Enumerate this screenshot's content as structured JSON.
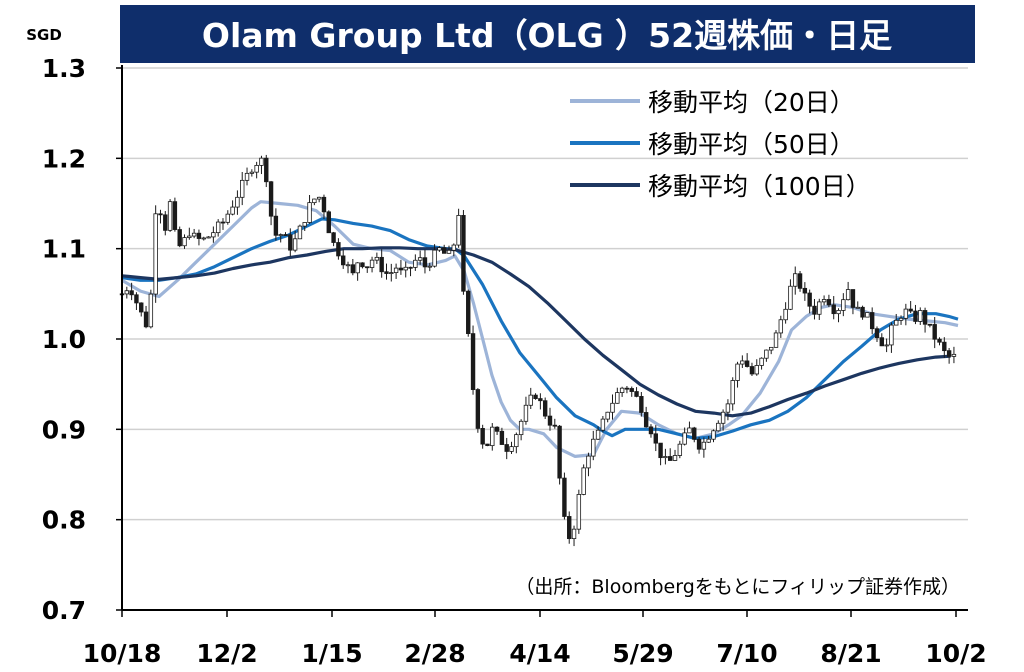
{
  "chart_data": {
    "type": "line",
    "title": "Olam Group Ltd（OLG ）52週株価・日足",
    "ylabel": "SGD",
    "ylim": [
      0.7,
      1.3
    ],
    "yticks": [
      "1.3",
      "1.2",
      "1.1",
      "1.0",
      "0.9",
      "0.8",
      "0.7"
    ],
    "ytick_values": [
      1.3,
      1.2,
      1.1,
      1.0,
      0.9,
      0.8,
      0.7
    ],
    "xticks": [
      "10/18",
      "12/2",
      "1/15",
      "2/28",
      "4/14",
      "5/29",
      "7/10",
      "8/21",
      "10/2"
    ],
    "grid": true,
    "legend_position": "top-right",
    "source": "（出所：Bloombergをもとにフィリップ証券作成）",
    "colors": {
      "title_bg": "#0f2e6b",
      "title_text": "#ffffff",
      "candle": "#1a1a1a",
      "ma20": "#9db4d8",
      "ma50": "#1a74c0",
      "ma100": "#1d3660",
      "grid": "#d0d0d0"
    },
    "series": [
      {
        "name": "移動平均（20日）",
        "key": "ma20",
        "points": [
          [
            0,
            1.065
          ],
          [
            10,
            1.053
          ],
          [
            20,
            1.047
          ],
          [
            30,
            1.065
          ],
          [
            40,
            1.085
          ],
          [
            50,
            1.105
          ],
          [
            60,
            1.125
          ],
          [
            70,
            1.145
          ],
          [
            75,
            1.152
          ],
          [
            85,
            1.15
          ],
          [
            95,
            1.148
          ],
          [
            105,
            1.142
          ],
          [
            115,
            1.125
          ],
          [
            125,
            1.105
          ],
          [
            135,
            1.1
          ],
          [
            145,
            1.098
          ],
          [
            155,
            1.085
          ],
          [
            165,
            1.082
          ],
          [
            175,
            1.087
          ],
          [
            180,
            1.092
          ],
          [
            185,
            1.075
          ],
          [
            190,
            1.04
          ],
          [
            195,
            1.0
          ],
          [
            200,
            0.96
          ],
          [
            205,
            0.93
          ],
          [
            210,
            0.91
          ],
          [
            215,
            0.9
          ],
          [
            220,
            0.9
          ],
          [
            228,
            0.895
          ],
          [
            235,
            0.88
          ],
          [
            245,
            0.87
          ],
          [
            255,
            0.872
          ],
          [
            262,
            0.9
          ],
          [
            270,
            0.92
          ],
          [
            280,
            0.918
          ],
          [
            290,
            0.905
          ],
          [
            300,
            0.895
          ],
          [
            310,
            0.89
          ],
          [
            320,
            0.895
          ],
          [
            328,
            0.905
          ],
          [
            335,
            0.915
          ],
          [
            345,
            0.94
          ],
          [
            355,
            0.975
          ],
          [
            362,
            1.01
          ],
          [
            370,
            1.025
          ],
          [
            378,
            1.035
          ],
          [
            385,
            1.038
          ],
          [
            395,
            1.035
          ],
          [
            405,
            1.028
          ],
          [
            415,
            1.025
          ],
          [
            425,
            1.022
          ],
          [
            435,
            1.02
          ],
          [
            445,
            1.018
          ],
          [
            452,
            1.015
          ]
        ]
      },
      {
        "name": "移動平均（50日）",
        "key": "ma50",
        "points": [
          [
            0,
            1.068
          ],
          [
            10,
            1.065
          ],
          [
            20,
            1.065
          ],
          [
            30,
            1.068
          ],
          [
            40,
            1.072
          ],
          [
            50,
            1.08
          ],
          [
            60,
            1.09
          ],
          [
            70,
            1.1
          ],
          [
            80,
            1.108
          ],
          [
            90,
            1.115
          ],
          [
            100,
            1.125
          ],
          [
            108,
            1.133
          ],
          [
            115,
            1.132
          ],
          [
            125,
            1.128
          ],
          [
            135,
            1.125
          ],
          [
            145,
            1.12
          ],
          [
            155,
            1.11
          ],
          [
            165,
            1.103
          ],
          [
            175,
            1.1
          ],
          [
            180,
            1.1
          ],
          [
            185,
            1.092
          ],
          [
            195,
            1.06
          ],
          [
            205,
            1.02
          ],
          [
            215,
            0.985
          ],
          [
            225,
            0.96
          ],
          [
            235,
            0.935
          ],
          [
            245,
            0.915
          ],
          [
            255,
            0.905
          ],
          [
            260,
            0.898
          ],
          [
            265,
            0.893
          ],
          [
            272,
            0.9
          ],
          [
            280,
            0.9
          ],
          [
            290,
            0.9
          ],
          [
            300,
            0.895
          ],
          [
            310,
            0.89
          ],
          [
            320,
            0.892
          ],
          [
            330,
            0.898
          ],
          [
            340,
            0.905
          ],
          [
            350,
            0.91
          ],
          [
            360,
            0.92
          ],
          [
            370,
            0.935
          ],
          [
            380,
            0.955
          ],
          [
            390,
            0.975
          ],
          [
            400,
            0.992
          ],
          [
            410,
            1.01
          ],
          [
            420,
            1.022
          ],
          [
            430,
            1.028
          ],
          [
            440,
            1.028
          ],
          [
            447,
            1.025
          ],
          [
            452,
            1.022
          ]
        ]
      },
      {
        "name": "移動平均（100日）",
        "key": "ma100",
        "points": [
          [
            0,
            1.07
          ],
          [
            10,
            1.068
          ],
          [
            20,
            1.066
          ],
          [
            30,
            1.068
          ],
          [
            40,
            1.07
          ],
          [
            50,
            1.073
          ],
          [
            60,
            1.078
          ],
          [
            70,
            1.082
          ],
          [
            80,
            1.085
          ],
          [
            90,
            1.09
          ],
          [
            100,
            1.093
          ],
          [
            110,
            1.097
          ],
          [
            120,
            1.1
          ],
          [
            130,
            1.1
          ],
          [
            140,
            1.101
          ],
          [
            150,
            1.101
          ],
          [
            160,
            1.1
          ],
          [
            170,
            1.1
          ],
          [
            180,
            1.099
          ],
          [
            190,
            1.093
          ],
          [
            200,
            1.085
          ],
          [
            210,
            1.072
          ],
          [
            220,
            1.058
          ],
          [
            230,
            1.04
          ],
          [
            240,
            1.02
          ],
          [
            250,
            1.0
          ],
          [
            260,
            0.982
          ],
          [
            270,
            0.966
          ],
          [
            280,
            0.95
          ],
          [
            290,
            0.938
          ],
          [
            300,
            0.928
          ],
          [
            310,
            0.92
          ],
          [
            320,
            0.918
          ],
          [
            330,
            0.915
          ],
          [
            340,
            0.918
          ],
          [
            350,
            0.925
          ],
          [
            360,
            0.933
          ],
          [
            370,
            0.94
          ],
          [
            380,
            0.948
          ],
          [
            390,
            0.955
          ],
          [
            400,
            0.962
          ],
          [
            410,
            0.968
          ],
          [
            420,
            0.973
          ],
          [
            430,
            0.977
          ],
          [
            440,
            0.98
          ],
          [
            448,
            0.981
          ]
        ]
      }
    ],
    "candles_anchor": [
      [
        0,
        1.05
      ],
      [
        4,
        1.06
      ],
      [
        8,
        1.04
      ],
      [
        12,
        1.02
      ],
      [
        15,
        1.01
      ],
      [
        17,
        1.14
      ],
      [
        20,
        1.15
      ],
      [
        23,
        1.12
      ],
      [
        26,
        1.15
      ],
      [
        29,
        1.11
      ],
      [
        32,
        1.1
      ],
      [
        36,
        1.12
      ],
      [
        40,
        1.11
      ],
      [
        45,
        1.11
      ],
      [
        50,
        1.12
      ],
      [
        55,
        1.13
      ],
      [
        60,
        1.15
      ],
      [
        65,
        1.17
      ],
      [
        70,
        1.19
      ],
      [
        75,
        1.2
      ],
      [
        78,
        1.18
      ],
      [
        81,
        1.13
      ],
      [
        84,
        1.11
      ],
      [
        87,
        1.12
      ],
      [
        90,
        1.1
      ],
      [
        94,
        1.11
      ],
      [
        98,
        1.13
      ],
      [
        102,
        1.15
      ],
      [
        106,
        1.16
      ],
      [
        110,
        1.14
      ],
      [
        113,
        1.11
      ],
      [
        116,
        1.1
      ],
      [
        119,
        1.09
      ],
      [
        122,
        1.08
      ],
      [
        125,
        1.07
      ],
      [
        128,
        1.09
      ],
      [
        132,
        1.08
      ],
      [
        136,
        1.09
      ],
      [
        140,
        1.08
      ],
      [
        144,
        1.07
      ],
      [
        148,
        1.08
      ],
      [
        152,
        1.07
      ],
      [
        156,
        1.08
      ],
      [
        160,
        1.09
      ],
      [
        164,
        1.08
      ],
      [
        168,
        1.09
      ],
      [
        172,
        1.1
      ],
      [
        176,
        1.09
      ],
      [
        179,
        1.1
      ],
      [
        182,
        1.14
      ],
      [
        184,
        1.06
      ],
      [
        186,
        1.02
      ],
      [
        188,
        0.99
      ],
      [
        190,
        0.94
      ],
      [
        192,
        0.91
      ],
      [
        194,
        0.89
      ],
      [
        197,
        0.88
      ],
      [
        200,
        0.9
      ],
      [
        204,
        0.89
      ],
      [
        208,
        0.88
      ],
      [
        212,
        0.89
      ],
      [
        216,
        0.91
      ],
      [
        220,
        0.93
      ],
      [
        224,
        0.94
      ],
      [
        228,
        0.92
      ],
      [
        231,
        0.91
      ],
      [
        234,
        0.9
      ],
      [
        236,
        0.86
      ],
      [
        238,
        0.81
      ],
      [
        240,
        0.79
      ],
      [
        242,
        0.78
      ],
      [
        244,
        0.79
      ],
      [
        246,
        0.81
      ],
      [
        248,
        0.84
      ],
      [
        250,
        0.86
      ],
      [
        253,
        0.88
      ],
      [
        256,
        0.89
      ],
      [
        259,
        0.9
      ],
      [
        262,
        0.92
      ],
      [
        265,
        0.93
      ],
      [
        268,
        0.94
      ],
      [
        272,
        0.95
      ],
      [
        276,
        0.94
      ],
      [
        280,
        0.93
      ],
      [
        283,
        0.91
      ],
      [
        286,
        0.9
      ],
      [
        289,
        0.88
      ],
      [
        292,
        0.87
      ],
      [
        295,
        0.86
      ],
      [
        298,
        0.87
      ],
      [
        301,
        0.88
      ],
      [
        304,
        0.89
      ],
      [
        307,
        0.9
      ],
      [
        310,
        0.89
      ],
      [
        313,
        0.88
      ],
      [
        316,
        0.89
      ],
      [
        319,
        0.9
      ],
      [
        322,
        0.91
      ],
      [
        325,
        0.92
      ],
      [
        328,
        0.93
      ],
      [
        330,
        0.95
      ],
      [
        332,
        0.97
      ],
      [
        335,
        0.98
      ],
      [
        338,
        0.97
      ],
      [
        341,
        0.96
      ],
      [
        344,
        0.97
      ],
      [
        347,
        0.98
      ],
      [
        350,
        0.99
      ],
      [
        353,
        1.0
      ],
      [
        356,
        1.02
      ],
      [
        359,
        1.04
      ],
      [
        362,
        1.06
      ],
      [
        365,
        1.07
      ],
      [
        368,
        1.05
      ],
      [
        371,
        1.04
      ],
      [
        374,
        1.03
      ],
      [
        377,
        1.04
      ],
      [
        380,
        1.05
      ],
      [
        383,
        1.04
      ],
      [
        386,
        1.03
      ],
      [
        389,
        1.04
      ],
      [
        392,
        1.06
      ],
      [
        395,
        1.04
      ],
      [
        398,
        1.03
      ],
      [
        401,
        1.03
      ],
      [
        404,
        1.02
      ],
      [
        407,
        1.01
      ],
      [
        410,
        1.0
      ],
      [
        413,
        0.99
      ],
      [
        416,
        1.01
      ],
      [
        419,
        1.02
      ],
      [
        422,
        1.03
      ],
      [
        425,
        1.03
      ],
      [
        428,
        1.02
      ],
      [
        431,
        1.03
      ],
      [
        434,
        1.02
      ],
      [
        437,
        1.01
      ],
      [
        440,
        1.0
      ],
      [
        443,
        0.99
      ],
      [
        446,
        0.98
      ],
      [
        449,
        0.98
      ],
      [
        452,
        0.98
      ]
    ]
  }
}
